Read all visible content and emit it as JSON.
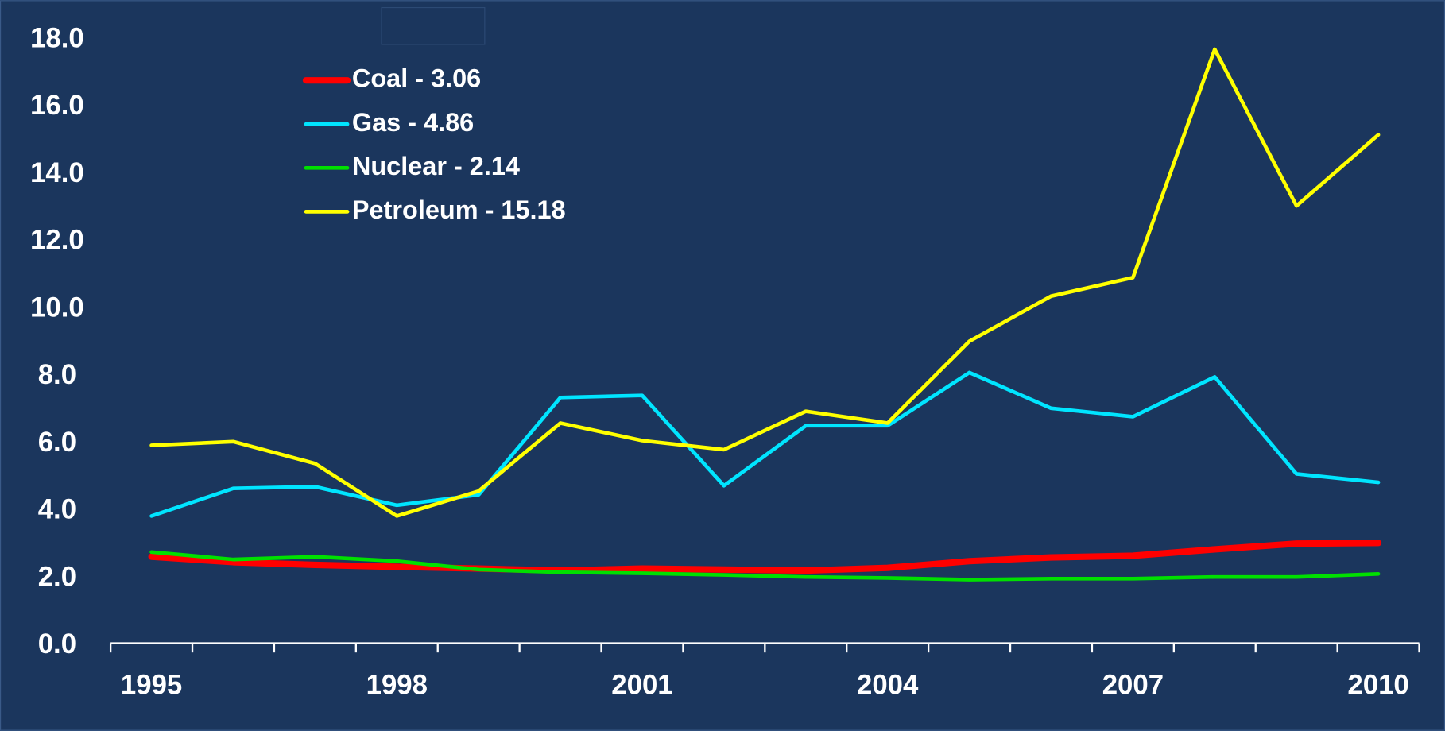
{
  "chart_data": {
    "type": "line",
    "categories": [
      "1995",
      null,
      null,
      "1998",
      null,
      null,
      "2001",
      null,
      null,
      "2004",
      null,
      null,
      "2007",
      null,
      null,
      "2010"
    ],
    "series": [
      {
        "name": "Coal - 3.06",
        "color": "#ff0000",
        "values": [
          2.65,
          2.49,
          2.41,
          2.35,
          2.3,
          2.24,
          2.3,
          2.27,
          2.24,
          2.32,
          2.52,
          2.63,
          2.68,
          2.87,
          3.04,
          3.06
        ]
      },
      {
        "name": "Gas - 4.86",
        "color": "#00e5ff",
        "values": [
          3.86,
          4.68,
          4.73,
          4.18,
          4.49,
          7.38,
          7.44,
          4.76,
          6.54,
          6.54,
          8.12,
          7.06,
          6.81,
          7.99,
          5.11,
          4.86
        ]
      },
      {
        "name": "Nuclear - 2.14",
        "color": "#00e000",
        "values": [
          2.79,
          2.57,
          2.65,
          2.52,
          2.27,
          2.19,
          2.16,
          2.11,
          2.05,
          2.02,
          1.97,
          2.0,
          2.0,
          2.05,
          2.05,
          2.14
        ]
      },
      {
        "name": "Petroleum - 15.18",
        "color": "#ffff00",
        "values": [
          5.96,
          6.07,
          5.42,
          3.86,
          4.6,
          6.62,
          6.1,
          5.83,
          6.97,
          6.62,
          9.05,
          10.39,
          10.94,
          17.72,
          13.07,
          15.18
        ]
      }
    ],
    "ylim": [
      0,
      18
    ],
    "yticks": [
      {
        "value": 0,
        "label": "0.0"
      },
      {
        "value": 2,
        "label": "2.0"
      },
      {
        "value": 4,
        "label": "4.0"
      },
      {
        "value": 6,
        "label": "6.0"
      },
      {
        "value": 8,
        "label": "8.0"
      },
      {
        "value": 10,
        "label": "10.0"
      },
      {
        "value": 12,
        "label": "12.0"
      },
      {
        "value": 14,
        "label": "14.0"
      },
      {
        "value": 16,
        "label": "16.0"
      },
      {
        "value": 18,
        "label": "18.0"
      }
    ],
    "grid": false,
    "legend": "upper-left"
  }
}
